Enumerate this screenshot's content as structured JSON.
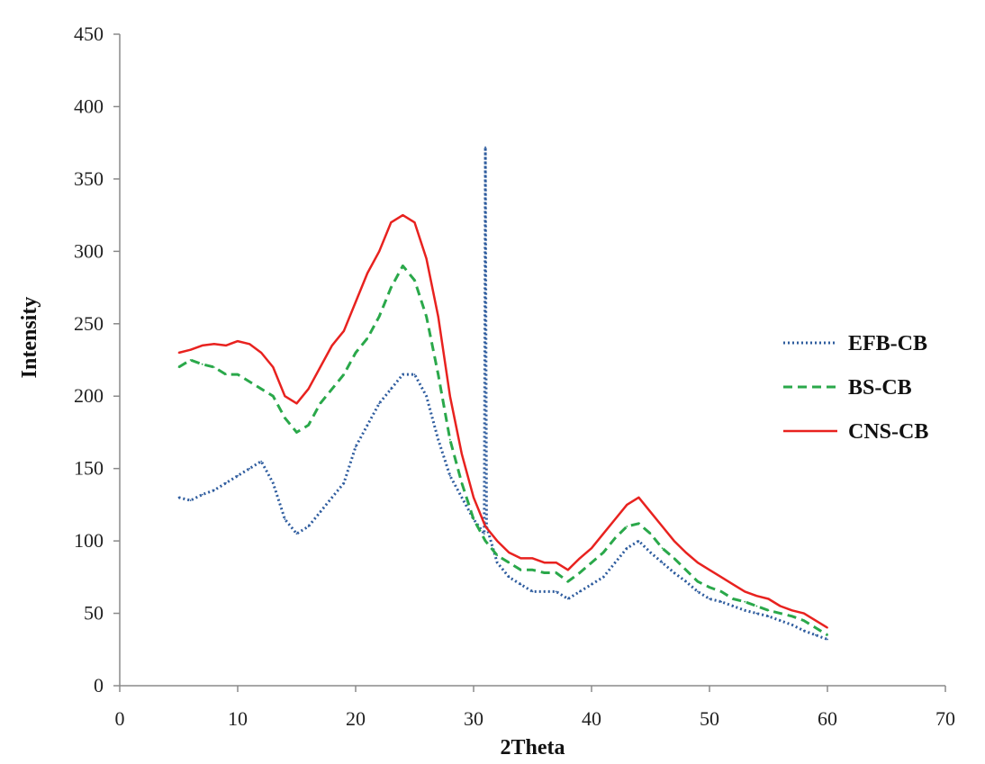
{
  "chart_data": {
    "type": "line",
    "title": "",
    "xlabel": "2Theta",
    "ylabel": "Intensity",
    "xlim": [
      0,
      70
    ],
    "ylim": [
      0,
      450
    ],
    "x_ticks": [
      0,
      10,
      20,
      30,
      40,
      50,
      60,
      70
    ],
    "y_ticks": [
      0,
      50,
      100,
      150,
      200,
      250,
      300,
      350,
      400,
      450
    ],
    "grid": false,
    "legend_position": "right",
    "series": [
      {
        "name": "EFB-CB",
        "color": "#2e5c9e",
        "style": "dotted",
        "x": [
          5,
          6,
          7,
          8,
          9,
          10,
          11,
          12,
          13,
          14,
          15,
          16,
          17,
          18,
          19,
          20,
          21,
          22,
          23,
          24,
          25,
          26,
          27,
          28,
          29,
          30,
          30.9,
          31,
          31.1,
          32,
          33,
          34,
          35,
          36,
          37,
          38,
          39,
          40,
          41,
          42,
          43,
          44,
          45,
          46,
          47,
          48,
          49,
          50,
          51,
          52,
          53,
          54,
          55,
          56,
          57,
          58,
          59,
          60
        ],
        "y": [
          130,
          128,
          132,
          135,
          140,
          145,
          150,
          155,
          140,
          115,
          105,
          110,
          120,
          130,
          140,
          165,
          180,
          195,
          205,
          215,
          215,
          200,
          170,
          145,
          130,
          115,
          105,
          372,
          110,
          85,
          75,
          70,
          65,
          65,
          65,
          60,
          65,
          70,
          75,
          85,
          95,
          100,
          92,
          85,
          78,
          72,
          65,
          60,
          58,
          55,
          52,
          50,
          48,
          45,
          42,
          38,
          35,
          32
        ]
      },
      {
        "name": "BS-CB",
        "color": "#2aa84a",
        "style": "dashed",
        "x": [
          5,
          6,
          7,
          8,
          9,
          10,
          11,
          12,
          13,
          14,
          15,
          16,
          17,
          18,
          19,
          20,
          21,
          22,
          23,
          24,
          25,
          26,
          27,
          28,
          29,
          30,
          31,
          32,
          33,
          34,
          35,
          36,
          37,
          38,
          39,
          40,
          41,
          42,
          43,
          44,
          45,
          46,
          47,
          48,
          49,
          50,
          51,
          52,
          53,
          54,
          55,
          56,
          57,
          58,
          59,
          60
        ],
        "y": [
          220,
          225,
          222,
          220,
          215,
          215,
          210,
          205,
          200,
          185,
          175,
          180,
          195,
          205,
          215,
          230,
          240,
          255,
          275,
          290,
          280,
          255,
          215,
          170,
          140,
          115,
          100,
          90,
          85,
          80,
          80,
          78,
          78,
          72,
          78,
          85,
          92,
          102,
          110,
          112,
          105,
          95,
          88,
          80,
          72,
          68,
          65,
          60,
          58,
          55,
          52,
          50,
          48,
          45,
          40,
          35
        ]
      },
      {
        "name": "CNS-CB",
        "color": "#e8221f",
        "style": "solid",
        "x": [
          5,
          6,
          7,
          8,
          9,
          10,
          11,
          12,
          13,
          14,
          15,
          16,
          17,
          18,
          19,
          20,
          21,
          22,
          23,
          24,
          25,
          26,
          27,
          28,
          29,
          30,
          31,
          32,
          33,
          34,
          35,
          36,
          37,
          38,
          39,
          40,
          41,
          42,
          43,
          44,
          45,
          46,
          47,
          48,
          49,
          50,
          51,
          52,
          53,
          54,
          55,
          56,
          57,
          58,
          59,
          60
        ],
        "y": [
          230,
          232,
          235,
          236,
          235,
          238,
          236,
          230,
          220,
          200,
          195,
          205,
          220,
          235,
          245,
          265,
          285,
          300,
          320,
          325,
          320,
          295,
          255,
          200,
          160,
          130,
          110,
          100,
          92,
          88,
          88,
          85,
          85,
          80,
          88,
          95,
          105,
          115,
          125,
          130,
          120,
          110,
          100,
          92,
          85,
          80,
          75,
          70,
          65,
          62,
          60,
          55,
          52,
          50,
          45,
          40
        ]
      }
    ]
  }
}
